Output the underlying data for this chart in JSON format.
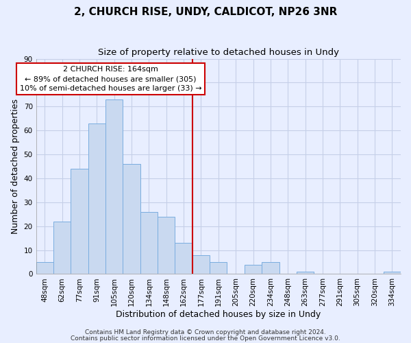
{
  "title": "2, CHURCH RISE, UNDY, CALDICOT, NP26 3NR",
  "subtitle": "Size of property relative to detached houses in Undy",
  "xlabel": "Distribution of detached houses by size in Undy",
  "ylabel": "Number of detached properties",
  "bar_labels": [
    "48sqm",
    "62sqm",
    "77sqm",
    "91sqm",
    "105sqm",
    "120sqm",
    "134sqm",
    "148sqm",
    "162sqm",
    "177sqm",
    "191sqm",
    "205sqm",
    "220sqm",
    "234sqm",
    "248sqm",
    "263sqm",
    "277sqm",
    "291sqm",
    "305sqm",
    "320sqm",
    "334sqm"
  ],
  "bar_values": [
    5,
    22,
    44,
    63,
    73,
    46,
    26,
    24,
    13,
    8,
    5,
    0,
    4,
    5,
    0,
    1,
    0,
    0,
    0,
    0,
    1
  ],
  "bar_color": "#c9d9f0",
  "bar_edgecolor": "#7aade0",
  "bar_linewidth": 0.7,
  "vline_color": "#cc0000",
  "vline_index": 8.5,
  "ylim": [
    0,
    90
  ],
  "yticks": [
    0,
    10,
    20,
    30,
    40,
    50,
    60,
    70,
    80,
    90
  ],
  "background_color": "#e8eeff",
  "grid_color": "#c5cfe8",
  "annotation_title": "2 CHURCH RISE: 164sqm",
  "annotation_line1": "← 89% of detached houses are smaller (305)",
  "annotation_line2": "10% of semi-detached houses are larger (33) →",
  "annotation_box_facecolor": "#ffffff",
  "annotation_box_edgecolor": "#cc0000",
  "footer_line1": "Contains HM Land Registry data © Crown copyright and database right 2024.",
  "footer_line2": "Contains public sector information licensed under the Open Government Licence v3.0.",
  "title_fontsize": 11,
  "subtitle_fontsize": 9.5,
  "axis_label_fontsize": 9,
  "tick_fontsize": 7.5,
  "annotation_fontsize": 8,
  "footer_fontsize": 6.5
}
